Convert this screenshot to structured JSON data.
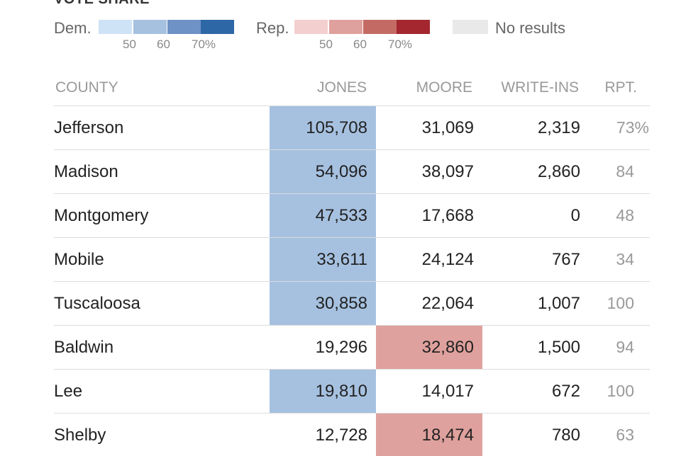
{
  "legend": {
    "title": "VOTE SHARE",
    "dem_label": "Dem.",
    "rep_label": "Rep.",
    "no_results_label": "No results",
    "dem_ticks": [
      "50",
      "60",
      "70%"
    ],
    "rep_ticks": [
      "50",
      "60",
      "70%"
    ],
    "dem_colors": [
      "#cfe3f6",
      "#a6c1e0",
      "#6e92c5",
      "#2d67a6"
    ],
    "rep_colors": [
      "#f4cfcf",
      "#dfa19d",
      "#c46a64",
      "#a4272f"
    ],
    "no_results_color": "#e9e9e9"
  },
  "table": {
    "headers": {
      "county": "COUNTY",
      "jones": "JONES",
      "moore": "MOORE",
      "writeins": "WRITE-INS",
      "rpt": "RPT."
    },
    "rows": [
      {
        "county": "Jefferson",
        "jones": "105,708",
        "moore": "31,069",
        "writeins": "2,319",
        "rpt": "73%",
        "leader": "jones"
      },
      {
        "county": "Madison",
        "jones": "54,096",
        "moore": "38,097",
        "writeins": "2,860",
        "rpt": "84",
        "leader": "jones"
      },
      {
        "county": "Montgomery",
        "jones": "47,533",
        "moore": "17,668",
        "writeins": "0",
        "rpt": "48",
        "leader": "jones"
      },
      {
        "county": "Mobile",
        "jones": "33,611",
        "moore": "24,124",
        "writeins": "767",
        "rpt": "34",
        "leader": "jones"
      },
      {
        "county": "Tuscaloosa",
        "jones": "30,858",
        "moore": "22,064",
        "writeins": "1,007",
        "rpt": "100",
        "leader": "jones"
      },
      {
        "county": "Baldwin",
        "jones": "19,296",
        "moore": "32,860",
        "writeins": "1,500",
        "rpt": "94",
        "leader": "moore"
      },
      {
        "county": "Lee",
        "jones": "19,810",
        "moore": "14,017",
        "writeins": "672",
        "rpt": "100",
        "leader": "jones"
      },
      {
        "county": "Shelby",
        "jones": "12,728",
        "moore": "18,474",
        "writeins": "780",
        "rpt": "63",
        "leader": "moore"
      }
    ]
  },
  "colors": {
    "dem_highlight": "#a6c1e0",
    "rep_highlight": "#dfa19d"
  }
}
